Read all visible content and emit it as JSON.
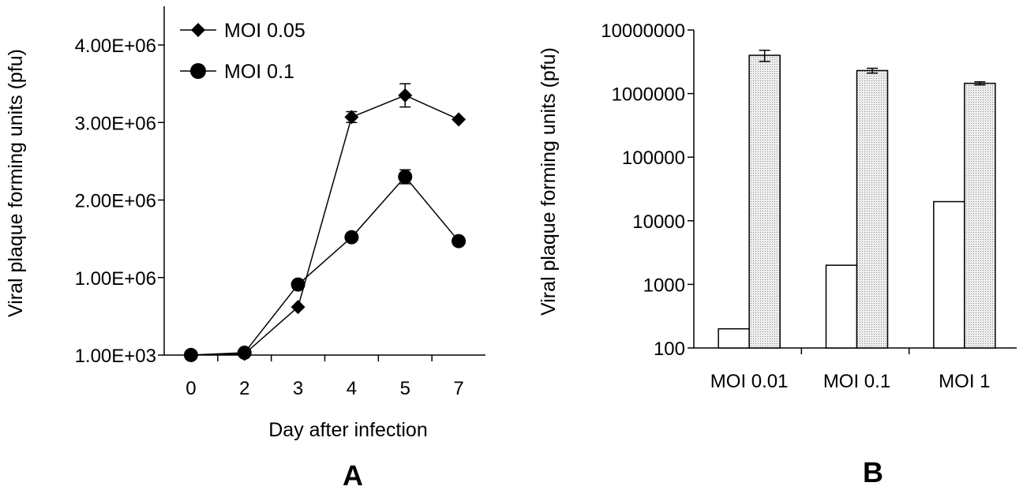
{
  "chart_data": [
    {
      "type": "line",
      "panel_label": "A",
      "xlabel": "Day after infection",
      "ylabel": "Viral plaque forming units (pfu)",
      "categories": [
        "0",
        "2",
        "3",
        "4",
        "5",
        "7"
      ],
      "y_ticks": [
        "1.00E+03",
        "1.00E+06",
        "2.00E+06",
        "3.00E+06",
        "4.00E+06"
      ],
      "ylim": [
        0,
        4000000
      ],
      "legend_position": "top-left",
      "series": [
        {
          "name": "MOI 0.05",
          "marker": "diamond",
          "values": [
            1000,
            15000,
            620000,
            3070000,
            3350000,
            3040000
          ],
          "errors": [
            0,
            0,
            0,
            70000,
            150000,
            0
          ]
        },
        {
          "name": "MOI 0.1",
          "marker": "circle",
          "values": [
            1000,
            30000,
            910000,
            1520000,
            2300000,
            1470000
          ],
          "errors": [
            0,
            0,
            0,
            50000,
            90000,
            0
          ]
        }
      ]
    },
    {
      "type": "bar",
      "panel_label": "B",
      "xlabel": "",
      "ylabel": "Viral plaque forming units (pfu)",
      "y_scale": "log",
      "ylim": [
        100,
        10000000
      ],
      "y_ticks": [
        "100",
        "1000",
        "10000",
        "100000",
        "1000000",
        "10000000"
      ],
      "categories": [
        "MOI 0.01",
        "MOI 0.1",
        "MOI 1"
      ],
      "series": [
        {
          "fill": "#ffffff",
          "values": [
            200,
            2000,
            20000
          ],
          "errors": [
            0,
            0,
            0
          ]
        },
        {
          "fill": "#d9d9d9",
          "values": [
            4000000,
            2300000,
            1450000
          ],
          "errors": [
            800000,
            200000,
            80000
          ]
        }
      ]
    }
  ]
}
